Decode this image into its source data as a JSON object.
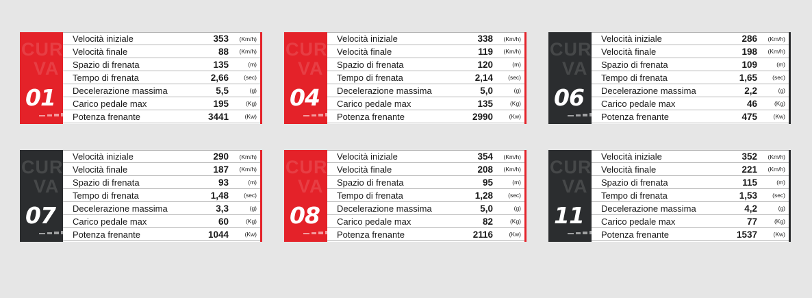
{
  "colors": {
    "red": "#e42229",
    "dark": "#2b2d2f",
    "background": "#e6e6e6"
  },
  "watermark": {
    "line1": "CUR",
    "line2": "VA"
  },
  "labels": [
    "Velocità iniziale",
    "Velocità finale",
    "Spazio di frenata",
    "Tempo di frenata",
    "Decelerazione massima",
    "Carico pedale max",
    "Potenza frenante"
  ],
  "units": [
    "(Km/h)",
    "(Km/h)",
    "(m)",
    "(sec)",
    "(g)",
    "(Kg)",
    "(Kw)"
  ],
  "cards": [
    {
      "number": "01",
      "color": "#e42229",
      "accent": "#e42229",
      "values": [
        "353",
        "88",
        "135",
        "2,66",
        "5,5",
        "195",
        "3441"
      ]
    },
    {
      "number": "04",
      "color": "#e42229",
      "accent": "#e42229",
      "values": [
        "338",
        "119",
        "120",
        "2,14",
        "5,0",
        "135",
        "2990"
      ]
    },
    {
      "number": "06",
      "color": "#2b2d2f",
      "accent": "#2b2d2f",
      "values": [
        "286",
        "198",
        "109",
        "1,65",
        "2,2",
        "46",
        "475"
      ]
    },
    {
      "number": "07",
      "color": "#2b2d2f",
      "accent": "#e42229",
      "values": [
        "290",
        "187",
        "93",
        "1,48",
        "3,3",
        "60",
        "1044"
      ]
    },
    {
      "number": "08",
      "color": "#e42229",
      "accent": "#e42229",
      "values": [
        "354",
        "208",
        "95",
        "1,28",
        "5,0",
        "82",
        "2116"
      ]
    },
    {
      "number": "11",
      "color": "#2b2d2f",
      "accent": "#2b2d2f",
      "values": [
        "352",
        "221",
        "115",
        "1,53",
        "4,2",
        "77",
        "1537"
      ]
    }
  ]
}
